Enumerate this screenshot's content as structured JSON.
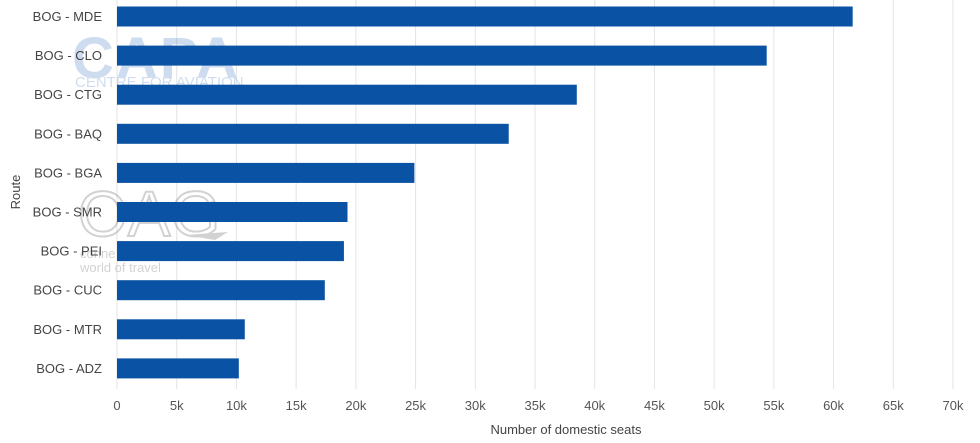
{
  "chart_data": {
    "type": "bar",
    "orientation": "horizontal",
    "categories": [
      "BOG - MDE",
      "BOG - CLO",
      "BOG - CTG",
      "BOG - BAQ",
      "BOG - BGA",
      "BOG - SMR",
      "BOG - PEI",
      "BOG - CUC",
      "BOG - MTR",
      "BOG - ADZ"
    ],
    "values": [
      61600,
      54400,
      38500,
      32800,
      24900,
      19300,
      19000,
      17400,
      10700,
      10200
    ],
    "xlabel": "Number of domestic seats",
    "ylabel": "Route",
    "xlim": [
      0,
      70000
    ],
    "xticks": [
      "0",
      "5k",
      "10k",
      "15k",
      "20k",
      "25k",
      "30k",
      "35k",
      "40k",
      "45k",
      "50k",
      "55k",
      "60k",
      "65k",
      "70k"
    ],
    "grid": "vertical",
    "bar_color": "#0a52a3"
  },
  "watermarks": {
    "capa_logo": "CAPA",
    "capa_tagline": "CENTRE FOR AVIATION",
    "oag_logo": "OAG",
    "oag_tagline_1": "conne",
    "oag_tagline_2": "world of travel"
  }
}
